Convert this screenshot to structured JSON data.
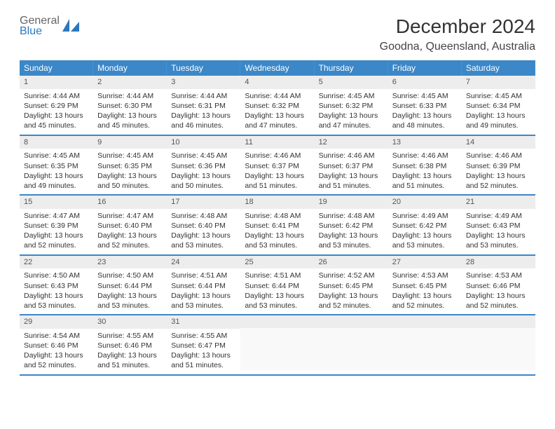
{
  "brand": {
    "line1": "General",
    "line2": "Blue",
    "accent": "#2a78bd"
  },
  "title": "December 2024",
  "subtitle": "Goodna, Queensland, Australia",
  "colors": {
    "header_bg": "#3b87c8",
    "header_text": "#ffffff",
    "daynum_bg": "#ededed",
    "row_border": "#3b87c8",
    "page_bg": "#ffffff",
    "text": "#333333"
  },
  "weekdays": [
    "Sunday",
    "Monday",
    "Tuesday",
    "Wednesday",
    "Thursday",
    "Friday",
    "Saturday"
  ],
  "weeks": [
    [
      {
        "day": "1",
        "sunrise": "Sunrise: 4:44 AM",
        "sunset": "Sunset: 6:29 PM",
        "daylight": "Daylight: 13 hours and 45 minutes."
      },
      {
        "day": "2",
        "sunrise": "Sunrise: 4:44 AM",
        "sunset": "Sunset: 6:30 PM",
        "daylight": "Daylight: 13 hours and 45 minutes."
      },
      {
        "day": "3",
        "sunrise": "Sunrise: 4:44 AM",
        "sunset": "Sunset: 6:31 PM",
        "daylight": "Daylight: 13 hours and 46 minutes."
      },
      {
        "day": "4",
        "sunrise": "Sunrise: 4:44 AM",
        "sunset": "Sunset: 6:32 PM",
        "daylight": "Daylight: 13 hours and 47 minutes."
      },
      {
        "day": "5",
        "sunrise": "Sunrise: 4:45 AM",
        "sunset": "Sunset: 6:32 PM",
        "daylight": "Daylight: 13 hours and 47 minutes."
      },
      {
        "day": "6",
        "sunrise": "Sunrise: 4:45 AM",
        "sunset": "Sunset: 6:33 PM",
        "daylight": "Daylight: 13 hours and 48 minutes."
      },
      {
        "day": "7",
        "sunrise": "Sunrise: 4:45 AM",
        "sunset": "Sunset: 6:34 PM",
        "daylight": "Daylight: 13 hours and 49 minutes."
      }
    ],
    [
      {
        "day": "8",
        "sunrise": "Sunrise: 4:45 AM",
        "sunset": "Sunset: 6:35 PM",
        "daylight": "Daylight: 13 hours and 49 minutes."
      },
      {
        "day": "9",
        "sunrise": "Sunrise: 4:45 AM",
        "sunset": "Sunset: 6:35 PM",
        "daylight": "Daylight: 13 hours and 50 minutes."
      },
      {
        "day": "10",
        "sunrise": "Sunrise: 4:45 AM",
        "sunset": "Sunset: 6:36 PM",
        "daylight": "Daylight: 13 hours and 50 minutes."
      },
      {
        "day": "11",
        "sunrise": "Sunrise: 4:46 AM",
        "sunset": "Sunset: 6:37 PM",
        "daylight": "Daylight: 13 hours and 51 minutes."
      },
      {
        "day": "12",
        "sunrise": "Sunrise: 4:46 AM",
        "sunset": "Sunset: 6:37 PM",
        "daylight": "Daylight: 13 hours and 51 minutes."
      },
      {
        "day": "13",
        "sunrise": "Sunrise: 4:46 AM",
        "sunset": "Sunset: 6:38 PM",
        "daylight": "Daylight: 13 hours and 51 minutes."
      },
      {
        "day": "14",
        "sunrise": "Sunrise: 4:46 AM",
        "sunset": "Sunset: 6:39 PM",
        "daylight": "Daylight: 13 hours and 52 minutes."
      }
    ],
    [
      {
        "day": "15",
        "sunrise": "Sunrise: 4:47 AM",
        "sunset": "Sunset: 6:39 PM",
        "daylight": "Daylight: 13 hours and 52 minutes."
      },
      {
        "day": "16",
        "sunrise": "Sunrise: 4:47 AM",
        "sunset": "Sunset: 6:40 PM",
        "daylight": "Daylight: 13 hours and 52 minutes."
      },
      {
        "day": "17",
        "sunrise": "Sunrise: 4:48 AM",
        "sunset": "Sunset: 6:40 PM",
        "daylight": "Daylight: 13 hours and 53 minutes."
      },
      {
        "day": "18",
        "sunrise": "Sunrise: 4:48 AM",
        "sunset": "Sunset: 6:41 PM",
        "daylight": "Daylight: 13 hours and 53 minutes."
      },
      {
        "day": "19",
        "sunrise": "Sunrise: 4:48 AM",
        "sunset": "Sunset: 6:42 PM",
        "daylight": "Daylight: 13 hours and 53 minutes."
      },
      {
        "day": "20",
        "sunrise": "Sunrise: 4:49 AM",
        "sunset": "Sunset: 6:42 PM",
        "daylight": "Daylight: 13 hours and 53 minutes."
      },
      {
        "day": "21",
        "sunrise": "Sunrise: 4:49 AM",
        "sunset": "Sunset: 6:43 PM",
        "daylight": "Daylight: 13 hours and 53 minutes."
      }
    ],
    [
      {
        "day": "22",
        "sunrise": "Sunrise: 4:50 AM",
        "sunset": "Sunset: 6:43 PM",
        "daylight": "Daylight: 13 hours and 53 minutes."
      },
      {
        "day": "23",
        "sunrise": "Sunrise: 4:50 AM",
        "sunset": "Sunset: 6:44 PM",
        "daylight": "Daylight: 13 hours and 53 minutes."
      },
      {
        "day": "24",
        "sunrise": "Sunrise: 4:51 AM",
        "sunset": "Sunset: 6:44 PM",
        "daylight": "Daylight: 13 hours and 53 minutes."
      },
      {
        "day": "25",
        "sunrise": "Sunrise: 4:51 AM",
        "sunset": "Sunset: 6:44 PM",
        "daylight": "Daylight: 13 hours and 53 minutes."
      },
      {
        "day": "26",
        "sunrise": "Sunrise: 4:52 AM",
        "sunset": "Sunset: 6:45 PM",
        "daylight": "Daylight: 13 hours and 52 minutes."
      },
      {
        "day": "27",
        "sunrise": "Sunrise: 4:53 AM",
        "sunset": "Sunset: 6:45 PM",
        "daylight": "Daylight: 13 hours and 52 minutes."
      },
      {
        "day": "28",
        "sunrise": "Sunrise: 4:53 AM",
        "sunset": "Sunset: 6:46 PM",
        "daylight": "Daylight: 13 hours and 52 minutes."
      }
    ],
    [
      {
        "day": "29",
        "sunrise": "Sunrise: 4:54 AM",
        "sunset": "Sunset: 6:46 PM",
        "daylight": "Daylight: 13 hours and 52 minutes."
      },
      {
        "day": "30",
        "sunrise": "Sunrise: 4:55 AM",
        "sunset": "Sunset: 6:46 PM",
        "daylight": "Daylight: 13 hours and 51 minutes."
      },
      {
        "day": "31",
        "sunrise": "Sunrise: 4:55 AM",
        "sunset": "Sunset: 6:47 PM",
        "daylight": "Daylight: 13 hours and 51 minutes."
      },
      null,
      null,
      null,
      null
    ]
  ]
}
